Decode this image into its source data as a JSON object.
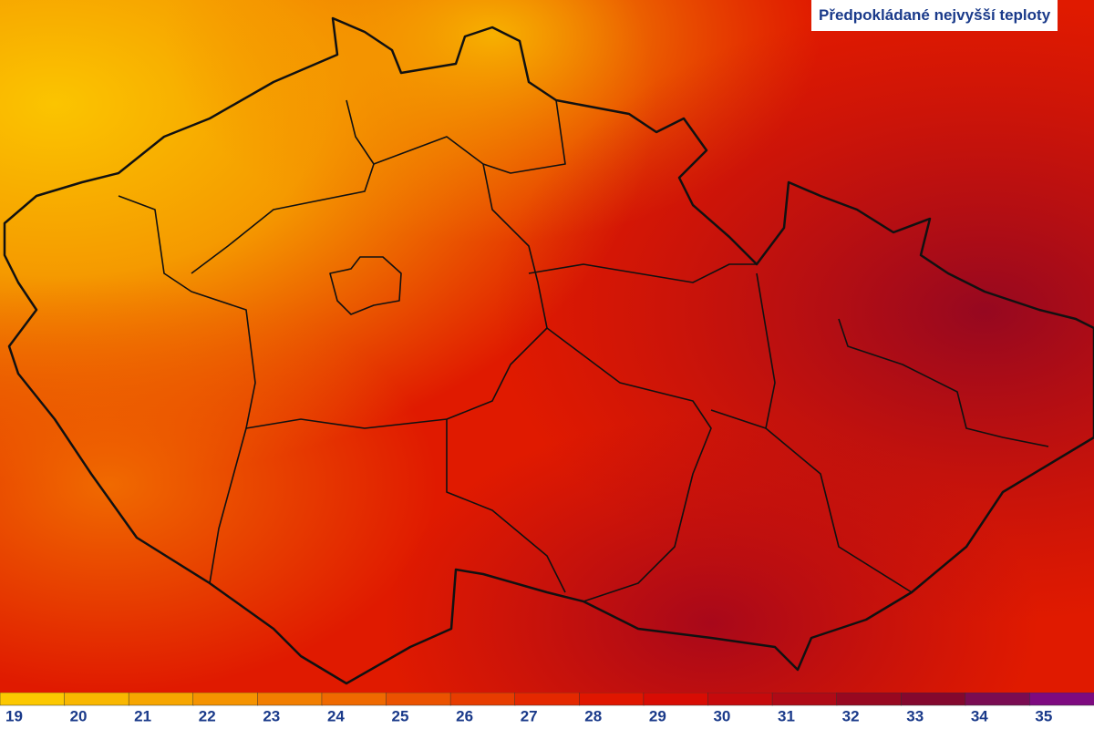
{
  "title": "Předpokládané nejvyšší teploty",
  "legend": [
    {
      "label": "19",
      "color": "#fcc800"
    },
    {
      "label": "20",
      "color": "#f9b700"
    },
    {
      "label": "21",
      "color": "#f7a600"
    },
    {
      "label": "22",
      "color": "#f59300"
    },
    {
      "label": "23",
      "color": "#f27e00"
    },
    {
      "label": "24",
      "color": "#ef6900"
    },
    {
      "label": "25",
      "color": "#eb5200"
    },
    {
      "label": "26",
      "color": "#e73c00"
    },
    {
      "label": "27",
      "color": "#e42800"
    },
    {
      "label": "28",
      "color": "#e01600"
    },
    {
      "label": "29",
      "color": "#d80c04"
    },
    {
      "label": "30",
      "color": "#c60a0c"
    },
    {
      "label": "31",
      "color": "#b00a16"
    },
    {
      "label": "32",
      "color": "#980820"
    },
    {
      "label": "33",
      "color": "#84082e"
    },
    {
      "label": "34",
      "color": "#7a0c52"
    },
    {
      "label": "35",
      "color": "#7e0a80"
    }
  ]
}
